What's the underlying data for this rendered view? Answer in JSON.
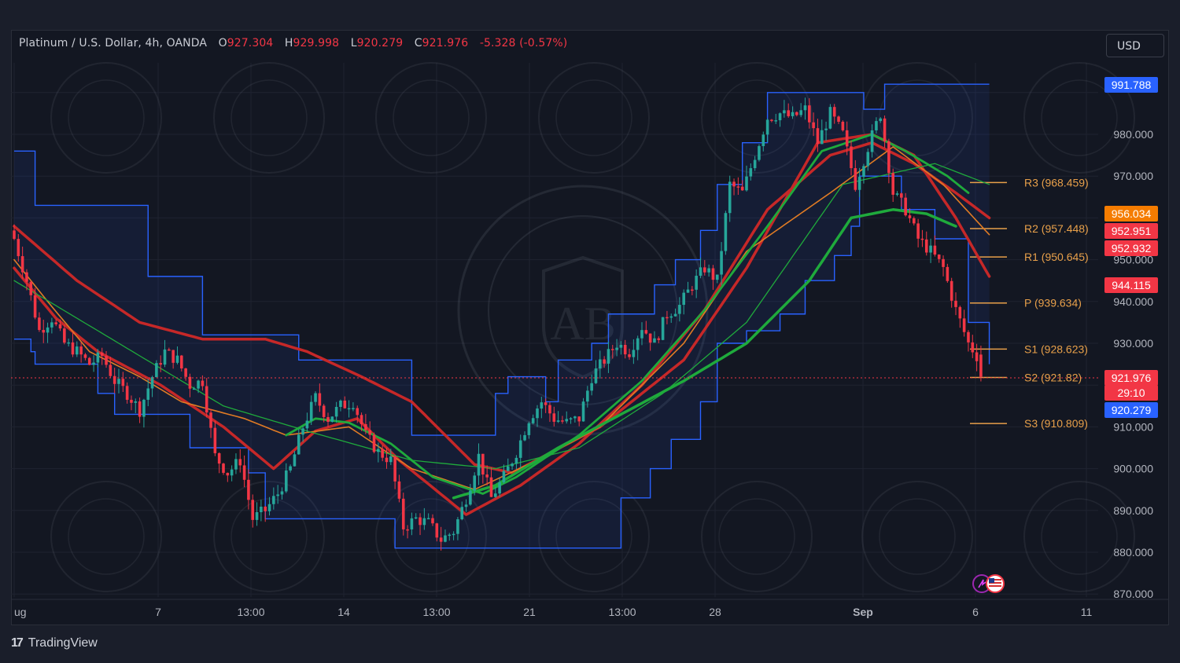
{
  "header": {
    "symbol": "Platinum / U.S. Dollar, 4h, OANDA",
    "open_label": "O",
    "open": "927.304",
    "high_label": "H",
    "high": "929.998",
    "low_label": "L",
    "low": "920.279",
    "close_label": "C",
    "close": "921.976",
    "change": "-5.328 (-0.57%)"
  },
  "currency_button": "USD",
  "branding": {
    "logo_text": "TradingView",
    "logo_mark": "17"
  },
  "colors": {
    "background": "#131722",
    "up": "#26a69a",
    "down": "#f23645",
    "keltner": "#2962ff",
    "ema_red": "#c62828",
    "ema_green": "#1faa3c",
    "ema_orange": "#e07b24",
    "pivot": "#e8a04a"
  },
  "price_tags": [
    {
      "text": "991.788",
      "color": "#2962ff"
    },
    {
      "text": "956.034",
      "color": "#f57c00"
    },
    {
      "text": "952.951",
      "color": "#f23645"
    },
    {
      "text": "952.932",
      "color": "#f23645"
    },
    {
      "text": "944.115",
      "color": "#f23645"
    },
    {
      "text": "921.976",
      "color": "#f23645"
    },
    {
      "text": "29:10",
      "color": "#f23645"
    },
    {
      "text": "920.279",
      "color": "#2962ff"
    }
  ],
  "chart_data": {
    "type": "candlestick",
    "ylim": [
      870,
      998
    ],
    "y_ticks": [
      "980.000",
      "970.000",
      "950.000",
      "940.000",
      "930.000",
      "910.000",
      "900.000",
      "890.000",
      "880.000",
      "870.000"
    ],
    "x_tick_labels": [
      "ug",
      "7",
      "13:00",
      "14",
      "13:00",
      "21",
      "13:00",
      "28",
      "Sep",
      "6",
      "11"
    ],
    "pivots": [
      {
        "name": "R3",
        "label": "R3 (968.459)",
        "value": 968.459
      },
      {
        "name": "R2",
        "label": "R2 (957.448)",
        "value": 957.448
      },
      {
        "name": "R1",
        "label": "R1 (950.645)",
        "value": 950.645
      },
      {
        "name": "P",
        "label": "P (939.634)",
        "value": 939.634
      },
      {
        "name": "S1",
        "label": "S1 (928.623)",
        "value": 928.623
      },
      {
        "name": "S2",
        "label": "S2 (921.82)",
        "value": 921.82
      },
      {
        "name": "S3",
        "label": "S3 (910.809)",
        "value": 910.809
      }
    ],
    "last_price": 921.976,
    "close_path": [
      [
        0,
        955
      ],
      [
        3,
        945
      ],
      [
        6,
        933
      ],
      [
        9,
        936
      ],
      [
        12,
        930
      ],
      [
        15,
        928
      ],
      [
        18,
        925
      ],
      [
        21,
        927
      ],
      [
        24,
        921
      ],
      [
        27,
        918
      ],
      [
        30,
        914
      ],
      [
        33,
        922
      ],
      [
        36,
        928
      ],
      [
        39,
        926
      ],
      [
        42,
        920
      ],
      [
        45,
        921
      ],
      [
        48,
        903
      ],
      [
        51,
        899
      ],
      [
        54,
        902
      ],
      [
        57,
        888
      ],
      [
        60,
        890
      ],
      [
        63,
        894
      ],
      [
        66,
        900
      ],
      [
        69,
        910
      ],
      [
        72,
        917
      ],
      [
        75,
        912
      ],
      [
        78,
        915
      ],
      [
        81,
        916
      ],
      [
        84,
        908
      ],
      [
        87,
        904
      ],
      [
        90,
        902
      ],
      [
        93,
        886
      ],
      [
        96,
        888
      ],
      [
        99,
        887
      ],
      [
        102,
        883
      ],
      [
        105,
        885
      ],
      [
        108,
        893
      ],
      [
        111,
        903
      ],
      [
        114,
        893
      ],
      [
        117,
        898
      ],
      [
        120,
        904
      ],
      [
        123,
        912
      ],
      [
        126,
        916
      ],
      [
        129,
        912
      ],
      [
        132,
        911
      ],
      [
        135,
        912
      ],
      [
        138,
        922
      ],
      [
        141,
        926
      ],
      [
        144,
        930
      ],
      [
        147,
        928
      ],
      [
        150,
        934
      ],
      [
        153,
        930
      ],
      [
        156,
        937
      ],
      [
        159,
        939
      ],
      [
        162,
        944
      ],
      [
        165,
        948
      ],
      [
        168,
        945
      ],
      [
        171,
        968
      ],
      [
        174,
        966
      ],
      [
        177,
        975
      ],
      [
        180,
        984
      ],
      [
        183,
        985
      ],
      [
        186,
        984
      ],
      [
        189,
        986
      ],
      [
        192,
        978
      ],
      [
        195,
        985
      ],
      [
        198,
        980
      ],
      [
        201,
        968
      ],
      [
        204,
        977
      ],
      [
        207,
        985
      ],
      [
        210,
        966
      ],
      [
        213,
        962
      ],
      [
        216,
        955
      ],
      [
        219,
        952
      ],
      [
        222,
        948
      ],
      [
        225,
        938
      ],
      [
        228,
        930
      ],
      [
        230,
        927
      ],
      [
        231,
        922
      ]
    ],
    "keltner_upper_path": [
      [
        0,
        976
      ],
      [
        4,
        976
      ],
      [
        5,
        963
      ],
      [
        25,
        963
      ],
      [
        32,
        946
      ],
      [
        45,
        932
      ],
      [
        68,
        926
      ],
      [
        95,
        908
      ],
      [
        110,
        908
      ],
      [
        115,
        918
      ],
      [
        118,
        922
      ],
      [
        127,
        916
      ],
      [
        130,
        926
      ],
      [
        138,
        930
      ],
      [
        142,
        937
      ],
      [
        153,
        944
      ],
      [
        158,
        950
      ],
      [
        164,
        957
      ],
      [
        168,
        968
      ],
      [
        174,
        978
      ],
      [
        180,
        990
      ],
      [
        198,
        990
      ],
      [
        203,
        986
      ],
      [
        208,
        992
      ],
      [
        233,
        992
      ]
    ],
    "keltner_lower_path": [
      [
        0,
        931
      ],
      [
        4,
        928
      ],
      [
        5,
        925
      ],
      [
        20,
        918
      ],
      [
        24,
        913
      ],
      [
        28,
        913
      ],
      [
        42,
        905
      ],
      [
        56,
        899
      ],
      [
        60,
        888
      ],
      [
        90,
        888
      ],
      [
        91,
        881
      ],
      [
        135,
        881
      ],
      [
        145,
        893
      ],
      [
        152,
        900
      ],
      [
        157,
        907
      ],
      [
        164,
        916
      ],
      [
        168,
        930
      ],
      [
        175,
        933
      ],
      [
        183,
        937
      ],
      [
        189,
        945
      ],
      [
        196,
        951
      ],
      [
        200,
        958
      ],
      [
        202,
        970
      ],
      [
        212,
        962
      ],
      [
        220,
        955
      ],
      [
        228,
        935
      ],
      [
        233,
        925
      ]
    ],
    "ema_series": [
      {
        "color": "#c62828",
        "width": 3.5,
        "path": [
          [
            0,
            958
          ],
          [
            15,
            945
          ],
          [
            30,
            935
          ],
          [
            45,
            931
          ],
          [
            60,
            931
          ],
          [
            70,
            928
          ],
          [
            83,
            922
          ],
          [
            95,
            916
          ],
          [
            110,
            901
          ],
          [
            119,
            899
          ],
          [
            140,
            910
          ],
          [
            160,
            926
          ],
          [
            175,
            948
          ],
          [
            192,
            978
          ],
          [
            205,
            980
          ],
          [
            215,
            975
          ],
          [
            225,
            960
          ],
          [
            233,
            946
          ]
        ]
      },
      {
        "color": "#c62828",
        "width": 3.5,
        "path": [
          [
            0,
            948
          ],
          [
            10,
            936
          ],
          [
            20,
            928
          ],
          [
            35,
            920
          ],
          [
            50,
            910
          ],
          [
            62,
            900
          ],
          [
            72,
            909
          ],
          [
            82,
            912
          ],
          [
            92,
            902
          ],
          [
            108,
            889
          ],
          [
            121,
            896
          ],
          [
            135,
            906
          ],
          [
            150,
            920
          ],
          [
            165,
            938
          ],
          [
            180,
            962
          ],
          [
            195,
            975
          ],
          [
            205,
            978
          ],
          [
            215,
            973
          ],
          [
            225,
            966
          ],
          [
            233,
            960
          ]
        ]
      },
      {
        "color": "#e07b24",
        "width": 1.6,
        "path": [
          [
            0,
            950
          ],
          [
            8,
            940
          ],
          [
            18,
            928
          ],
          [
            30,
            922
          ],
          [
            40,
            916
          ],
          [
            55,
            912
          ],
          [
            65,
            908
          ],
          [
            80,
            910
          ],
          [
            95,
            900
          ],
          [
            110,
            895
          ],
          [
            125,
            902
          ],
          [
            140,
            910
          ],
          [
            160,
            930
          ],
          [
            175,
            952
          ],
          [
            195,
            966
          ],
          [
            210,
            977
          ],
          [
            222,
            968
          ],
          [
            233,
            956
          ]
        ]
      },
      {
        "color": "#1faa3c",
        "width": 1.3,
        "path": [
          [
            0,
            945
          ],
          [
            25,
            930
          ],
          [
            50,
            915
          ],
          [
            70,
            909
          ],
          [
            95,
            902
          ],
          [
            115,
            900
          ],
          [
            135,
            905
          ],
          [
            155,
            918
          ],
          [
            175,
            935
          ],
          [
            198,
            968
          ],
          [
            220,
            973
          ],
          [
            233,
            968
          ]
        ]
      },
      {
        "color": "#1faa3c",
        "width": 2.8,
        "path": [
          [
            65,
            908
          ],
          [
            72,
            912
          ],
          [
            80,
            911
          ],
          [
            90,
            906
          ],
          [
            100,
            898
          ],
          [
            112,
            894
          ],
          [
            120,
            898
          ],
          [
            135,
            908
          ],
          [
            150,
            921
          ],
          [
            165,
            938
          ],
          [
            180,
            958
          ],
          [
            193,
            976
          ],
          [
            205,
            980
          ],
          [
            213,
            976
          ],
          [
            223,
            970
          ],
          [
            228,
            966
          ]
        ]
      },
      {
        "color": "#1faa3c",
        "width": 3.5,
        "path": [
          [
            105,
            893
          ],
          [
            115,
            896
          ],
          [
            130,
            905
          ],
          [
            145,
            913
          ],
          [
            160,
            921
          ],
          [
            175,
            930
          ],
          [
            190,
            945
          ],
          [
            200,
            960
          ],
          [
            210,
            962
          ],
          [
            218,
            961
          ],
          [
            225,
            958
          ]
        ]
      }
    ]
  }
}
